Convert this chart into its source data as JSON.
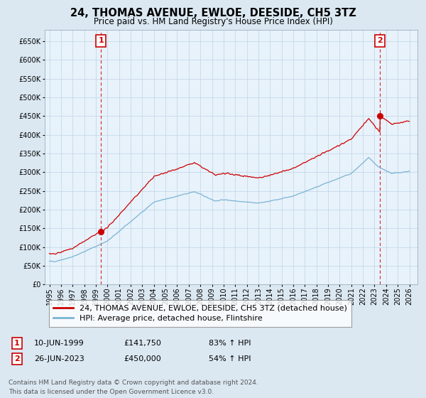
{
  "title": "24, THOMAS AVENUE, EWLOE, DEESIDE, CH5 3TZ",
  "subtitle": "Price paid vs. HM Land Registry's House Price Index (HPI)",
  "ylim": [
    0,
    680000
  ],
  "yticks": [
    0,
    50000,
    100000,
    150000,
    200000,
    250000,
    300000,
    350000,
    400000,
    450000,
    500000,
    550000,
    600000,
    650000
  ],
  "xlim_start": 1994.6,
  "xlim_end": 2026.7,
  "xticks": [
    1995,
    1996,
    1997,
    1998,
    1999,
    2000,
    2001,
    2002,
    2003,
    2004,
    2005,
    2006,
    2007,
    2008,
    2009,
    2010,
    2011,
    2012,
    2013,
    2014,
    2015,
    2016,
    2017,
    2018,
    2019,
    2020,
    2021,
    2022,
    2023,
    2024,
    2025,
    2026
  ],
  "sale1_year": 1999.44,
  "sale1_price": 141750,
  "sale2_year": 2023.48,
  "sale2_price": 450000,
  "sale_color": "#cc0000",
  "hpi_color": "#7ab4d4",
  "grid_color": "#c5d8ea",
  "background_color": "#dbe8f2",
  "plot_bg_color": "#e8f2fa",
  "legend_line1": "24, THOMAS AVENUE, EWLOE, DEESIDE, CH5 3TZ (detached house)",
  "legend_line2": "HPI: Average price, detached house, Flintshire",
  "ann1_date": "10-JUN-1999",
  "ann1_price": "£141,750",
  "ann1_pct": "83% ↑ HPI",
  "ann2_date": "26-JUN-2023",
  "ann2_price": "£450,000",
  "ann2_pct": "54% ↑ HPI",
  "footer": "Contains HM Land Registry data © Crown copyright and database right 2024.\nThis data is licensed under the Open Government Licence v3.0.",
  "title_fontsize": 10.5,
  "subtitle_fontsize": 8.5,
  "tick_fontsize": 7,
  "legend_fontsize": 8,
  "ann_fontsize": 8,
  "footer_fontsize": 6.5
}
